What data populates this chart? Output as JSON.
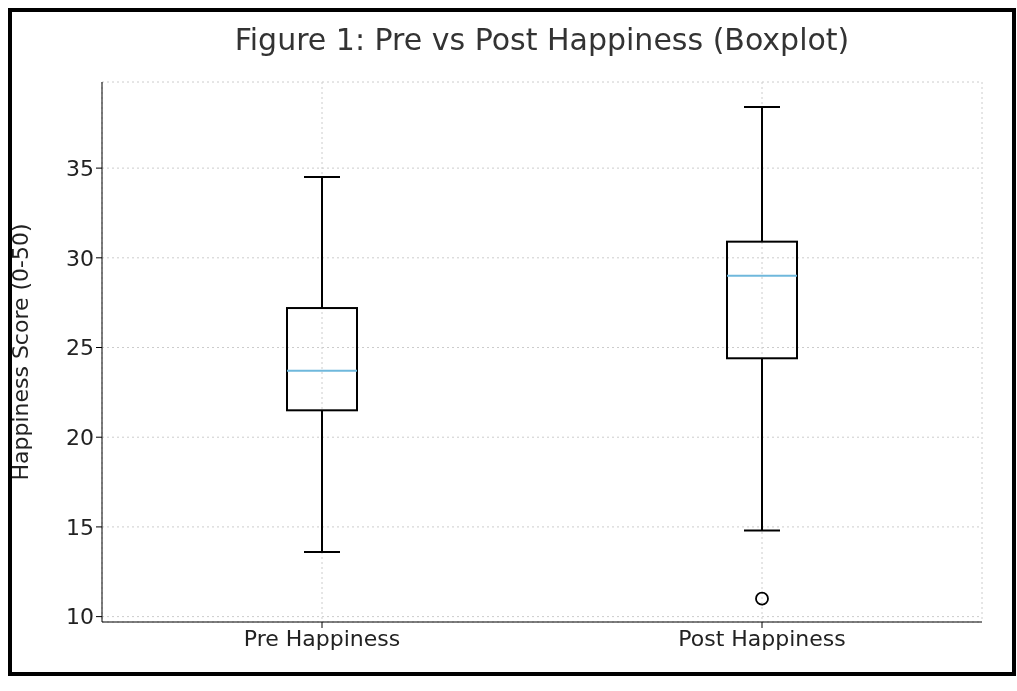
{
  "chart_data": {
    "type": "box",
    "title": "Figure 1: Pre vs Post Happiness (Boxplot)",
    "ylabel": "Happiness Score (0-50)",
    "categories": [
      "Pre Happiness",
      "Post Happiness"
    ],
    "boxes": [
      {
        "low": 13.6,
        "q1": 21.5,
        "median": 23.7,
        "q3": 27.2,
        "high": 34.5
      },
      {
        "low": 14.8,
        "q1": 24.4,
        "median": 29.0,
        "q3": 30.9,
        "high": 38.4,
        "outliers": [
          11.0
        ]
      }
    ],
    "ylim": [
      9.7,
      39.8
    ],
    "yticks": [
      10,
      15,
      20,
      25,
      30,
      35
    ],
    "grid": true
  }
}
